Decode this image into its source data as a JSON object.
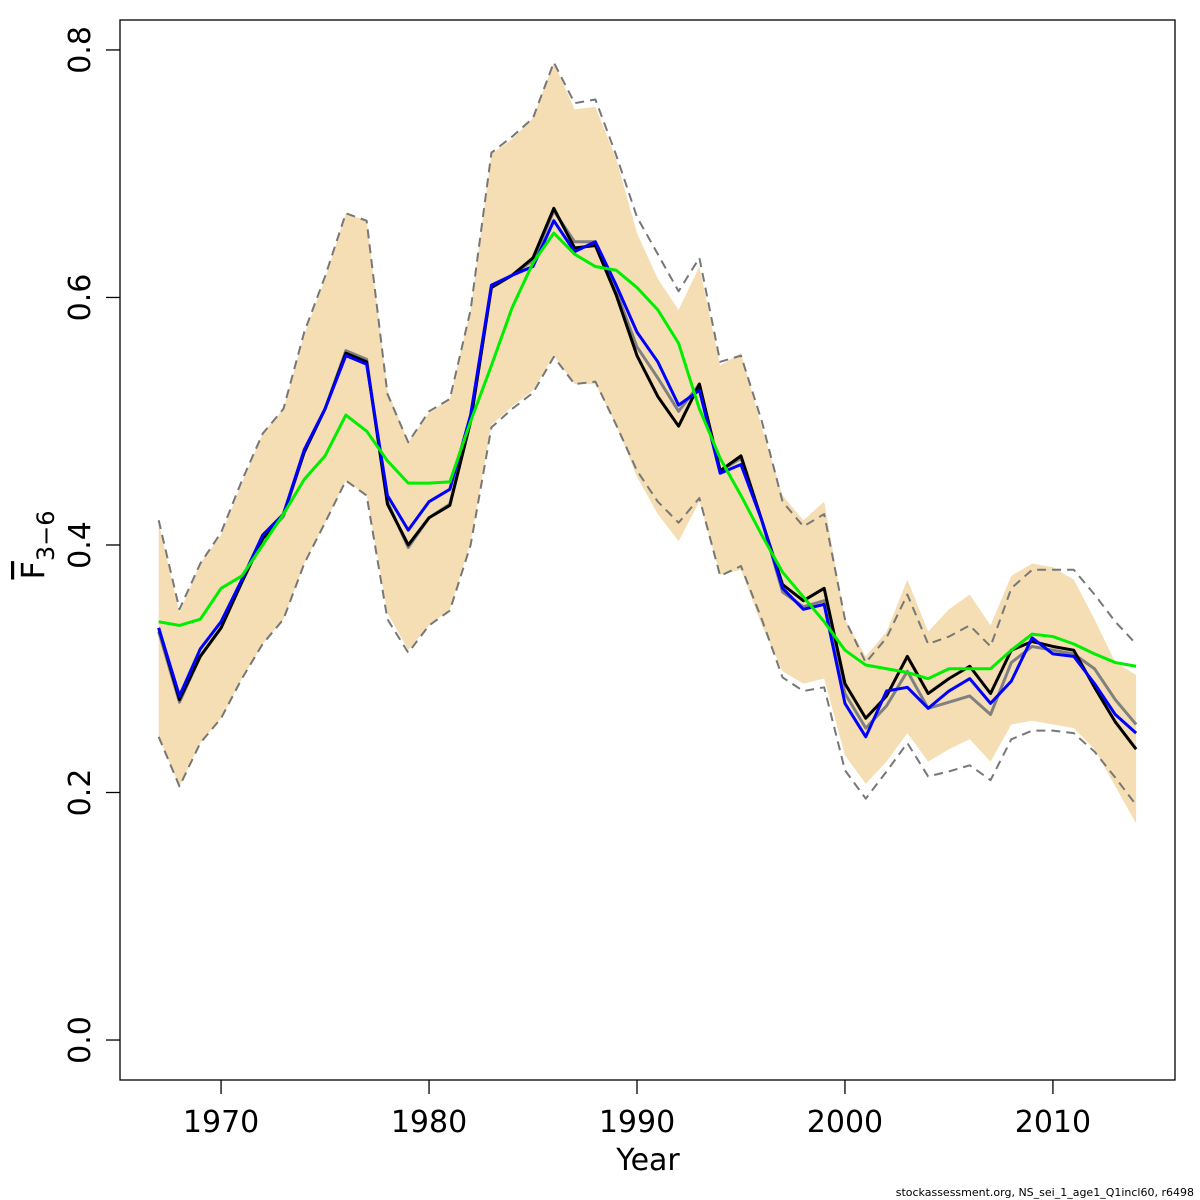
{
  "chart_data": {
    "type": "line",
    "x_label": "Year",
    "y_label": "F",
    "y_label_sub": "3−6",
    "footnote": "stockassessment.org, NS_sei_1_age1_Q1incl60, r6498",
    "x": [
      1967,
      1968,
      1969,
      1970,
      1971,
      1972,
      1973,
      1974,
      1975,
      1976,
      1977,
      1978,
      1979,
      1980,
      1981,
      1982,
      1983,
      1984,
      1985,
      1986,
      1987,
      1988,
      1989,
      1990,
      1991,
      1992,
      1993,
      1994,
      1995,
      1996,
      1997,
      1998,
      1999,
      2000,
      2001,
      2002,
      2003,
      2004,
      2005,
      2006,
      2007,
      2008,
      2009,
      2010,
      2011,
      2012,
      2013,
      2014
    ],
    "xlim": [
      1965.14,
      2015.87
    ],
    "xticks": [
      1970,
      1980,
      1990,
      2000,
      2010
    ],
    "ylim": [
      -0.0323,
      0.8242
    ],
    "yticks": [
      {
        "value": 0,
        "label": "0.0"
      },
      0.2,
      0.4,
      0.6,
      0.8
    ],
    "band": {
      "color": "#f5deb3",
      "upper": [
        0.418,
        0.345,
        0.385,
        0.408,
        0.45,
        0.49,
        0.51,
        0.57,
        0.615,
        0.668,
        0.662,
        0.525,
        0.483,
        0.507,
        0.518,
        0.59,
        0.716,
        0.728,
        0.745,
        0.79,
        0.752,
        0.754,
        0.712,
        0.652,
        0.615,
        0.59,
        0.625,
        0.545,
        0.555,
        0.495,
        0.44,
        0.42,
        0.435,
        0.34,
        0.31,
        0.33,
        0.372,
        0.33,
        0.348,
        0.36,
        0.335,
        0.375,
        0.385,
        0.382,
        0.372,
        0.34,
        0.305,
        0.295
      ],
      "lower": [
        0.245,
        0.205,
        0.24,
        0.26,
        0.292,
        0.32,
        0.34,
        0.385,
        0.418,
        0.452,
        0.44,
        0.345,
        0.315,
        0.335,
        0.348,
        0.402,
        0.497,
        0.512,
        0.525,
        0.553,
        0.53,
        0.53,
        0.497,
        0.455,
        0.425,
        0.403,
        0.435,
        0.376,
        0.38,
        0.335,
        0.298,
        0.288,
        0.292,
        0.23,
        0.207,
        0.225,
        0.248,
        0.225,
        0.235,
        0.243,
        0.225,
        0.255,
        0.258,
        0.255,
        0.252,
        0.235,
        0.205,
        0.175
      ]
    },
    "series": [
      {
        "color": "#777777",
        "dashed": true,
        "values": [
          0.42,
          0.348,
          0.385,
          0.41,
          0.452,
          0.49,
          0.51,
          0.572,
          0.617,
          0.668,
          0.662,
          0.522,
          0.483,
          0.508,
          0.518,
          0.59,
          0.717,
          0.73,
          0.745,
          0.79,
          0.757,
          0.76,
          0.715,
          0.665,
          0.635,
          0.605,
          0.632,
          0.548,
          0.553,
          0.5,
          0.435,
          0.415,
          0.425,
          0.34,
          0.305,
          0.325,
          0.36,
          0.32,
          0.326,
          0.335,
          0.318,
          0.365,
          0.38,
          0.38,
          0.38,
          0.36,
          0.338,
          0.32
        ]
      },
      {
        "color": "#777777",
        "dashed": true,
        "values": [
          0.245,
          0.205,
          0.24,
          0.26,
          0.292,
          0.32,
          0.34,
          0.385,
          0.418,
          0.452,
          0.44,
          0.34,
          0.313,
          0.335,
          0.347,
          0.4,
          0.495,
          0.51,
          0.523,
          0.552,
          0.53,
          0.532,
          0.497,
          0.46,
          0.435,
          0.418,
          0.438,
          0.375,
          0.383,
          0.34,
          0.293,
          0.282,
          0.285,
          0.218,
          0.195,
          0.217,
          0.24,
          0.213,
          0.217,
          0.222,
          0.21,
          0.243,
          0.25,
          0.25,
          0.248,
          0.233,
          0.212,
          0.19
        ]
      },
      {
        "color": "#808080",
        "dashed": false,
        "values": [
          0.33,
          0.273,
          0.31,
          0.333,
          0.37,
          0.405,
          0.423,
          0.475,
          0.51,
          0.557,
          0.55,
          0.435,
          0.398,
          0.422,
          0.433,
          0.5,
          0.608,
          0.618,
          0.63,
          0.67,
          0.645,
          0.645,
          0.605,
          0.56,
          0.535,
          0.508,
          0.53,
          0.46,
          0.47,
          0.42,
          0.362,
          0.35,
          0.355,
          0.28,
          0.252,
          0.27,
          0.298,
          0.268,
          0.273,
          0.278,
          0.263,
          0.305,
          0.318,
          0.315,
          0.312,
          0.3,
          0.275,
          0.255
        ]
      },
      {
        "color": "#000000",
        "dashed": false,
        "values": [
          0.333,
          0.275,
          0.31,
          0.333,
          0.37,
          0.405,
          0.425,
          0.475,
          0.51,
          0.555,
          0.548,
          0.433,
          0.4,
          0.422,
          0.432,
          0.5,
          0.608,
          0.618,
          0.632,
          0.672,
          0.64,
          0.642,
          0.602,
          0.553,
          0.52,
          0.496,
          0.53,
          0.46,
          0.472,
          0.42,
          0.368,
          0.355,
          0.365,
          0.288,
          0.26,
          0.278,
          0.31,
          0.28,
          0.292,
          0.302,
          0.28,
          0.315,
          0.322,
          0.318,
          0.315,
          0.285,
          0.257,
          0.235
        ]
      },
      {
        "color": "#0000ff",
        "dashed": false,
        "values": [
          0.333,
          0.278,
          0.316,
          0.338,
          0.372,
          0.408,
          0.425,
          0.477,
          0.51,
          0.553,
          0.546,
          0.44,
          0.412,
          0.435,
          0.445,
          0.505,
          0.61,
          0.618,
          0.625,
          0.662,
          0.637,
          0.645,
          0.61,
          0.572,
          0.548,
          0.513,
          0.525,
          0.458,
          0.465,
          0.42,
          0.365,
          0.348,
          0.352,
          0.272,
          0.245,
          0.282,
          0.285,
          0.268,
          0.282,
          0.292,
          0.272,
          0.29,
          0.325,
          0.312,
          0.31,
          0.288,
          0.263,
          0.248
        ]
      },
      {
        "color": "#00ee00",
        "dashed": false,
        "values": [
          0.338,
          0.335,
          0.34,
          0.365,
          0.375,
          0.4,
          0.425,
          0.453,
          0.472,
          0.505,
          0.492,
          0.468,
          0.45,
          0.45,
          0.451,
          0.5,
          0.545,
          0.592,
          0.628,
          0.652,
          0.635,
          0.625,
          0.622,
          0.608,
          0.59,
          0.563,
          0.51,
          0.47,
          0.44,
          0.408,
          0.378,
          0.358,
          0.338,
          0.315,
          0.303,
          0.3,
          0.297,
          0.292,
          0.3,
          0.3,
          0.3,
          0.315,
          0.328,
          0.326,
          0.32,
          0.312,
          0.305,
          0.302
        ]
      }
    ]
  }
}
